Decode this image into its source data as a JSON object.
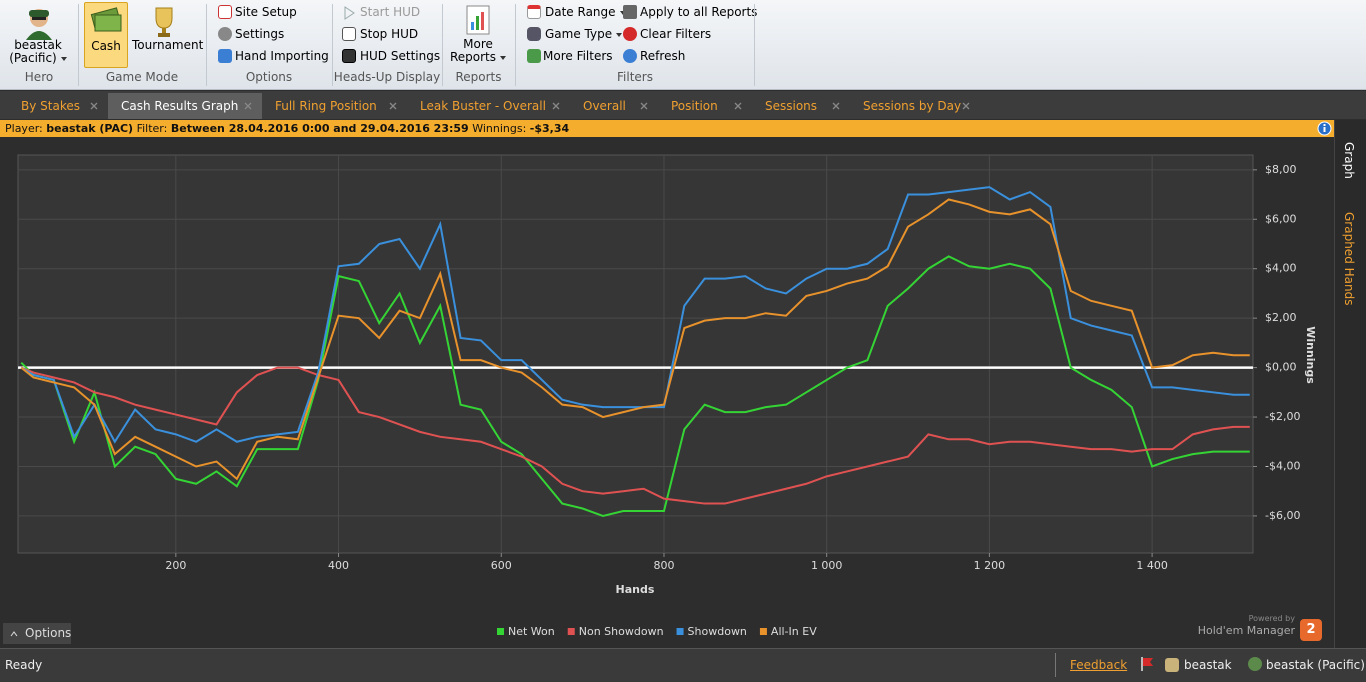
{
  "ribbon": {
    "hero": {
      "name": "beastak",
      "site": "(Pacific)",
      "label": "Hero"
    },
    "game_mode": {
      "items": [
        "Cash",
        "Tournament"
      ],
      "label": "Game Mode"
    },
    "options": {
      "items": [
        "Site Setup",
        "Settings",
        "Hand Importing"
      ],
      "label": "Options"
    },
    "hud": {
      "items": [
        "Start HUD",
        "Stop HUD",
        "HUD Settings"
      ],
      "label": "Heads-Up Display"
    },
    "reports": {
      "items": [
        "More Reports"
      ],
      "label": "Reports"
    },
    "filters": {
      "items": [
        "Date Range",
        "Game Type",
        "More Filters",
        "Apply to all Reports",
        "Clear Filters",
        "Refresh"
      ],
      "label": "Filters"
    }
  },
  "tabs": [
    "By Stakes",
    "Cash Results Graph",
    "Full Ring Position",
    "Leak Buster - Overall",
    "Overall",
    "Position",
    "Sessions",
    "Sessions by Day"
  ],
  "filter_bar": {
    "player_label": "Player:",
    "player": "beastak (PAC)",
    "filter_label": "Filter:",
    "filter": "Between 28.04.2016 0:00 and 29.04.2016 23:59",
    "winnings_label": "Winnings:",
    "winnings": "-$3,34"
  },
  "side_tabs": [
    "Graph",
    "Graphed Hands"
  ],
  "chart_data": {
    "type": "line",
    "xlabel": "Hands",
    "ylabel": "Winnings",
    "x": [
      10,
      25,
      50,
      75,
      100,
      125,
      150,
      175,
      200,
      225,
      250,
      275,
      300,
      325,
      350,
      375,
      400,
      425,
      450,
      475,
      500,
      525,
      550,
      575,
      600,
      625,
      650,
      675,
      700,
      725,
      750,
      775,
      800,
      825,
      850,
      875,
      900,
      925,
      950,
      975,
      1000,
      1025,
      1050,
      1075,
      1100,
      1125,
      1150,
      1175,
      1200,
      1225,
      1250,
      1275,
      1300,
      1325,
      1350,
      1375,
      1400,
      1425,
      1450,
      1475,
      1500,
      1520
    ],
    "series": [
      {
        "name": "Net Won",
        "color": "#35d435",
        "values": [
          0.2,
          -0.3,
          -0.5,
          -3,
          -1,
          -4,
          -3.2,
          -3.5,
          -4.5,
          -4.7,
          -4.2,
          -4.8,
          -3.3,
          -3.3,
          -3.3,
          -0.5,
          3.7,
          3.5,
          1.8,
          3,
          1,
          2.5,
          -1.5,
          -1.7,
          -3,
          -3.5,
          -4.5,
          -5.5,
          -5.7,
          -6,
          -5.8,
          -5.8,
          -5.8,
          -2.5,
          -1.5,
          -1.8,
          -1.8,
          -1.6,
          -1.5,
          -1,
          -0.5,
          0,
          0.3,
          2.5,
          3.2,
          4,
          4.5,
          4.1,
          4,
          4.2,
          4,
          3.2,
          0,
          -0.5,
          -0.9,
          -1.6,
          -4,
          -3.7,
          -3.5,
          -3.4,
          -3.4,
          -3.4
        ]
      },
      {
        "name": "Non Showdown",
        "color": "#e05252",
        "values": [
          0,
          -0.2,
          -0.4,
          -0.6,
          -1,
          -1.2,
          -1.5,
          -1.7,
          -1.9,
          -2.1,
          -2.3,
          -1,
          -0.3,
          0,
          0,
          -0.3,
          -0.5,
          -1.8,
          -2,
          -2.3,
          -2.6,
          -2.8,
          -2.9,
          -3,
          -3.3,
          -3.6,
          -4,
          -4.7,
          -5,
          -5.1,
          -5,
          -4.9,
          -5.3,
          -5.4,
          -5.5,
          -5.5,
          -5.3,
          -5.1,
          -4.9,
          -4.7,
          -4.4,
          -4.2,
          -4,
          -3.8,
          -3.6,
          -2.7,
          -2.9,
          -2.9,
          -3.1,
          -3,
          -3,
          -3.1,
          -3.2,
          -3.3,
          -3.3,
          -3.4,
          -3.3,
          -3.3,
          -2.7,
          -2.5,
          -2.4,
          -2.4
        ]
      },
      {
        "name": "Showdown",
        "color": "#3a90dc",
        "values": [
          0,
          -0.3,
          -0.5,
          -2.8,
          -1.5,
          -3,
          -1.7,
          -2.5,
          -2.7,
          -3,
          -2.5,
          -3,
          -2.8,
          -2.7,
          -2.6,
          -0.2,
          4.1,
          4.2,
          5,
          5.2,
          4,
          5.8,
          1.2,
          1.1,
          0.3,
          0.3,
          -0.5,
          -1.3,
          -1.5,
          -1.6,
          -1.6,
          -1.6,
          -1.6,
          2.5,
          3.6,
          3.6,
          3.7,
          3.2,
          3,
          3.6,
          4,
          4,
          4.2,
          4.8,
          7,
          7,
          7.1,
          7.2,
          7.3,
          6.8,
          7.1,
          6.5,
          2,
          1.7,
          1.5,
          1.3,
          -0.8,
          -0.8,
          -0.9,
          -1,
          -1.1,
          -1.1
        ]
      },
      {
        "name": "All-In EV",
        "color": "#e8922c",
        "values": [
          0,
          -0.4,
          -0.6,
          -0.8,
          -1.5,
          -3.5,
          -2.8,
          -3.2,
          -3.6,
          -4,
          -3.8,
          -4.5,
          -3,
          -2.8,
          -2.9,
          -0.4,
          2.1,
          2,
          1.2,
          2.3,
          2,
          3.8,
          0.3,
          0.3,
          0,
          -0.2,
          -0.8,
          -1.5,
          -1.6,
          -2,
          -1.8,
          -1.6,
          -1.5,
          1.6,
          1.9,
          2,
          2,
          2.2,
          2.1,
          2.9,
          3.1,
          3.4,
          3.6,
          4.1,
          5.7,
          6.2,
          6.8,
          6.6,
          6.3,
          6.2,
          6.4,
          5.8,
          3.1,
          2.7,
          2.5,
          2.3,
          0,
          0.1,
          0.5,
          0.6,
          0.5,
          0.5
        ]
      }
    ],
    "xlim": [
      6,
      1524
    ],
    "ylim": [
      -7.5,
      8.6
    ],
    "xticks": [
      200,
      400,
      600,
      800,
      {
        "value": 1000,
        "label": "1 000"
      },
      {
        "value": 1200,
        "label": "1 200"
      },
      {
        "value": 1400,
        "label": "1 400"
      }
    ],
    "yticks": [
      {
        "value": -6,
        "label": "-$6,00"
      },
      {
        "value": -4,
        "label": "-$4,00"
      },
      {
        "value": -2,
        "label": "-$2,00"
      },
      {
        "value": 0,
        "label": "$0,00"
      },
      {
        "value": 2,
        "label": "$2,00"
      },
      {
        "value": 4,
        "label": "$4,00"
      },
      {
        "value": 6,
        "label": "$6,00"
      },
      {
        "value": 8,
        "label": "$8,00"
      }
    ],
    "grid": true,
    "legend": "bottom"
  },
  "footer": {
    "options": "Options",
    "powered": "Powered by",
    "brand": "Hold'em Manager",
    "version": "2"
  },
  "status": {
    "ready": "Ready",
    "feedback": "Feedback",
    "user": "beastak",
    "player": "beastak (Pacific)"
  }
}
